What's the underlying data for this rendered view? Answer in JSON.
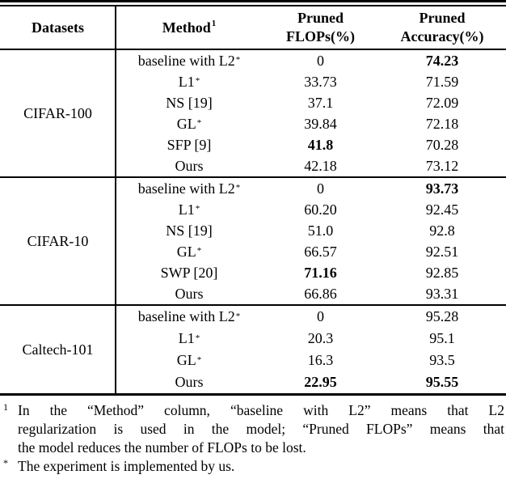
{
  "table": {
    "headers": {
      "datasets": "Datasets",
      "method": {
        "text": "Method",
        "sup": "1"
      },
      "flops": {
        "line1": "Pruned",
        "line2": "FLOPs(%)"
      },
      "accuracy": {
        "line1": "Pruned",
        "line2": "Accuracy(%)"
      }
    },
    "sections": [
      {
        "dataset": "CIFAR-100",
        "rows": [
          {
            "method": "baseline with L2",
            "sup": "*",
            "flops": "0",
            "flops_bold": false,
            "acc": "74.23",
            "acc_bold": true
          },
          {
            "method": "L1",
            "sup": "*",
            "flops": "33.73",
            "flops_bold": false,
            "acc": "71.59",
            "acc_bold": false
          },
          {
            "method": "NS [19]",
            "sup": "",
            "flops": "37.1",
            "flops_bold": false,
            "acc": "72.09",
            "acc_bold": false
          },
          {
            "method": "GL",
            "sup": "*",
            "flops": "39.84",
            "flops_bold": false,
            "acc": "72.18",
            "acc_bold": false
          },
          {
            "method": "SFP [9]",
            "sup": "",
            "flops": "41.8",
            "flops_bold": true,
            "acc": "70.28",
            "acc_bold": false
          },
          {
            "method": "Ours",
            "sup": "",
            "flops": "42.18",
            "flops_bold": false,
            "acc": "73.12",
            "acc_bold": false
          }
        ]
      },
      {
        "dataset": "CIFAR-10",
        "rows": [
          {
            "method": "baseline with L2",
            "sup": "*",
            "flops": "0",
            "flops_bold": false,
            "acc": "93.73",
            "acc_bold": true
          },
          {
            "method": "L1",
            "sup": "*",
            "flops": "60.20",
            "flops_bold": false,
            "acc": "92.45",
            "acc_bold": false
          },
          {
            "method": "NS [19]",
            "sup": "",
            "flops": "51.0",
            "flops_bold": false,
            "acc": "92.8",
            "acc_bold": false
          },
          {
            "method": "GL",
            "sup": "*",
            "flops": "66.57",
            "flops_bold": false,
            "acc": "92.51",
            "acc_bold": false
          },
          {
            "method": "SWP [20]",
            "sup": "",
            "flops": "71.16",
            "flops_bold": true,
            "acc": "92.85",
            "acc_bold": false
          },
          {
            "method": "Ours",
            "sup": "",
            "flops": "66.86",
            "flops_bold": false,
            "acc": "93.31",
            "acc_bold": false
          }
        ]
      },
      {
        "dataset": "Caltech-101",
        "rows": [
          {
            "method": "baseline with L2",
            "sup": "*",
            "flops": "0",
            "flops_bold": false,
            "acc": "95.28",
            "acc_bold": false
          },
          {
            "method": "L1",
            "sup": "*",
            "flops": "20.3",
            "flops_bold": false,
            "acc": "95.1",
            "acc_bold": false
          },
          {
            "method": "GL",
            "sup": "*",
            "flops": "16.3",
            "flops_bold": false,
            "acc": "93.5",
            "acc_bold": false
          },
          {
            "method": "Ours",
            "sup": "",
            "flops": "22.95",
            "flops_bold": true,
            "acc": "95.55",
            "acc_bold": true
          }
        ]
      }
    ]
  },
  "footnotes": [
    {
      "marker": "1",
      "lines": [
        "In the “Method” column, “baseline with L2” means that L2",
        "regularization is used in the model; “Pruned FLOPs” means that",
        "the model reduces the number of FLOPs to be lost."
      ]
    },
    {
      "marker": "*",
      "lines": [
        "The experiment is implemented by us."
      ]
    }
  ]
}
